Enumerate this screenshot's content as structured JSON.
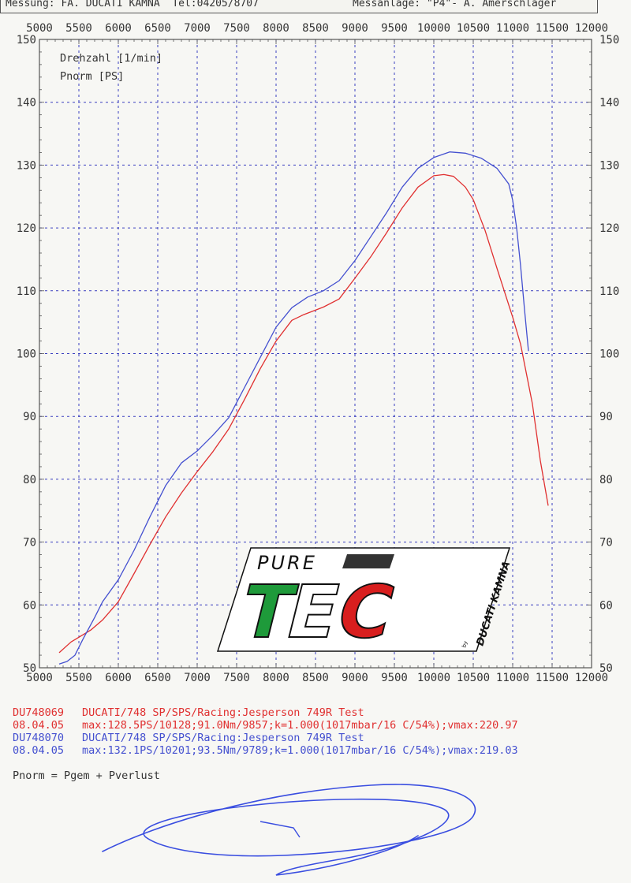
{
  "header": {
    "left": "Messung: FA. DUCATI KAMNA  Tel:04205/8707",
    "right": "Messanlage: \"P4\"- A. Amerschlager"
  },
  "chart_data": {
    "type": "line",
    "xlim": [
      5000,
      12000
    ],
    "ylim": [
      50,
      150
    ],
    "x_ticks": [
      5000,
      5500,
      6000,
      6500,
      7000,
      7500,
      8000,
      8500,
      9000,
      9500,
      10000,
      10500,
      11000,
      11500,
      12000
    ],
    "y_ticks": [
      50,
      60,
      70,
      80,
      90,
      100,
      110,
      120,
      130,
      140,
      150
    ],
    "grid": true,
    "axis_legend": [
      "Drehzahl [1/min]",
      "Pnorm [PS]"
    ],
    "series": [
      {
        "name": "DU748069",
        "color": "#e03030",
        "points": [
          [
            5250,
            52.4
          ],
          [
            5400,
            54.1
          ],
          [
            5650,
            56
          ],
          [
            5800,
            57.6
          ],
          [
            6000,
            60.5
          ],
          [
            6200,
            65
          ],
          [
            6400,
            69.6
          ],
          [
            6600,
            74
          ],
          [
            6800,
            77.8
          ],
          [
            7000,
            81.2
          ],
          [
            7200,
            84.4
          ],
          [
            7400,
            88
          ],
          [
            7600,
            92.7
          ],
          [
            7800,
            97.6
          ],
          [
            8000,
            102
          ],
          [
            8200,
            105.3
          ],
          [
            8350,
            106.2
          ],
          [
            8600,
            107.4
          ],
          [
            8800,
            108.7
          ],
          [
            9000,
            112
          ],
          [
            9200,
            115.4
          ],
          [
            9400,
            119.2
          ],
          [
            9600,
            123.2
          ],
          [
            9800,
            126.5
          ],
          [
            10000,
            128.3
          ],
          [
            10128,
            128.5
          ],
          [
            10250,
            128.2
          ],
          [
            10400,
            126.5
          ],
          [
            10500,
            124.5
          ],
          [
            10650,
            119.6
          ],
          [
            10800,
            113.6
          ],
          [
            11000,
            105.8
          ],
          [
            11100,
            101.5
          ],
          [
            11250,
            92
          ],
          [
            11350,
            83
          ],
          [
            11450,
            75.8
          ]
        ]
      },
      {
        "name": "DU748070",
        "color": "#4450d0",
        "points": [
          [
            5250,
            50.6
          ],
          [
            5350,
            51
          ],
          [
            5450,
            52
          ],
          [
            5550,
            54.5
          ],
          [
            5700,
            58
          ],
          [
            5800,
            60.5
          ],
          [
            6000,
            64
          ],
          [
            6200,
            68.7
          ],
          [
            6400,
            74
          ],
          [
            6600,
            79
          ],
          [
            6800,
            82.6
          ],
          [
            7000,
            84.5
          ],
          [
            7200,
            87
          ],
          [
            7400,
            89.8
          ],
          [
            7600,
            94.6
          ],
          [
            7800,
            99.4
          ],
          [
            8000,
            104.2
          ],
          [
            8200,
            107.3
          ],
          [
            8400,
            109
          ],
          [
            8600,
            110
          ],
          [
            8800,
            111.6
          ],
          [
            9000,
            114.8
          ],
          [
            9200,
            118.6
          ],
          [
            9400,
            122.4
          ],
          [
            9600,
            126.5
          ],
          [
            9800,
            129.5
          ],
          [
            10000,
            131.2
          ],
          [
            10201,
            132.1
          ],
          [
            10400,
            131.9
          ],
          [
            10600,
            131.1
          ],
          [
            10800,
            129.5
          ],
          [
            10950,
            127
          ],
          [
            11000,
            124.4
          ],
          [
            11050,
            120
          ],
          [
            11100,
            114
          ],
          [
            11150,
            107
          ],
          [
            11200,
            100.4
          ]
        ]
      }
    ]
  },
  "legend": [
    {
      "id": "DU748069",
      "desc": "DUCATI/748 SP/SPS/Racing:Jesperson 749R Test",
      "date": "08.04.05",
      "stats": "max:128.5PS/10128;91.0Nm/9857;k=1.000(1017mbar/16 C/54%);vmax:220.97",
      "color": "#e03030"
    },
    {
      "id": "DU748070",
      "desc": "DUCATI/748 SP/SPS/Racing:Jesperson 749R Test",
      "date": "08.04.05",
      "stats": "max:132.1PS/10201;93.5Nm/9789;k=1.000(1017mbar/16 C/54%);vmax:219.03",
      "color": "#4450d0"
    }
  ],
  "formula": "Pnorm = Pgem + Pverlust",
  "logo": {
    "top": "PURE",
    "main": "TEC",
    "side": "DUCATI KAMNA",
    "by": "by"
  },
  "colors": {
    "grid": "#3a3fbf",
    "text": "#333333",
    "logo_green": "#1e9a3a",
    "logo_red": "#d81e1e"
  }
}
